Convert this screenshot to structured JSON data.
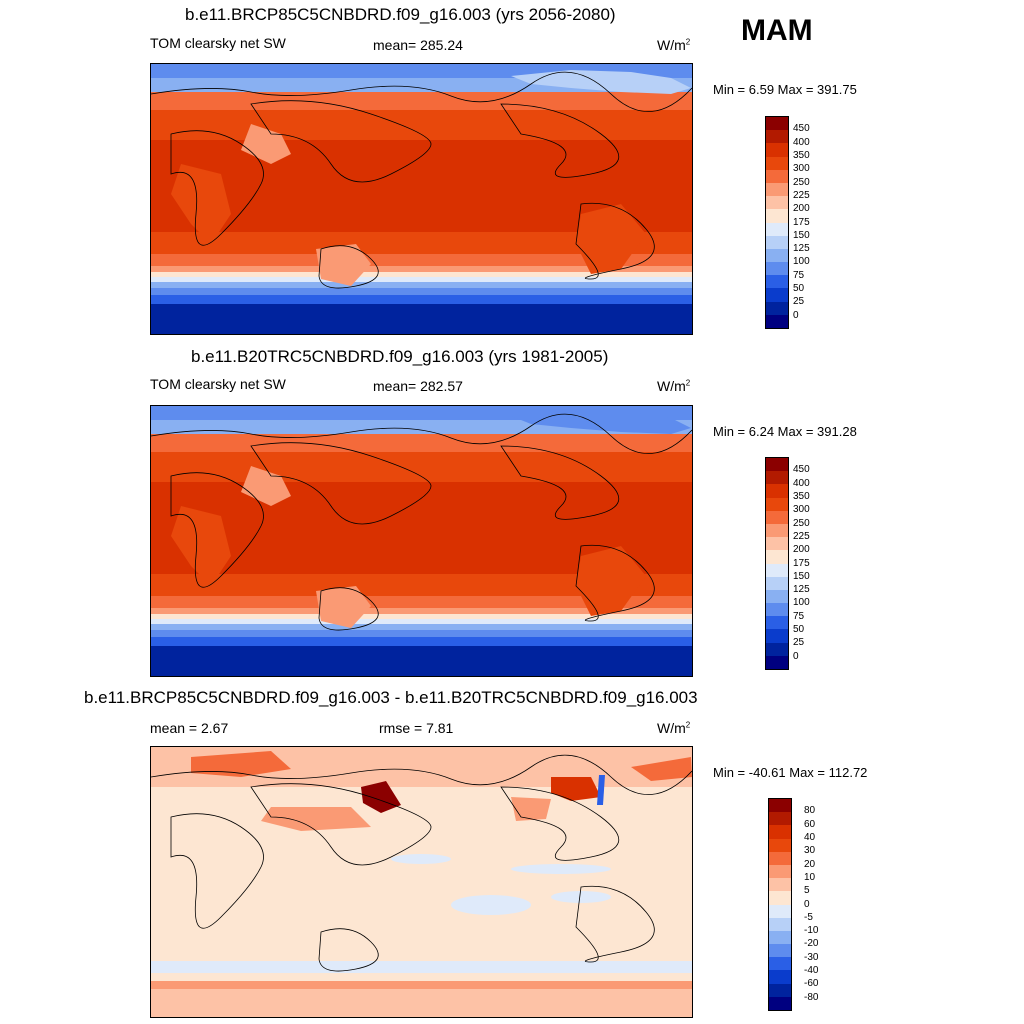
{
  "season": "MAM",
  "panel1": {
    "title": "b.e11.BRCP85C5CNBDRD.f09_g16.003 (yrs 2056-2080)",
    "variable": "TOM clearsky net SW",
    "mean": "mean= 285.24",
    "units": "W/m",
    "units_exp": "2",
    "minmax": "Min =   6.59 Max = 391.75"
  },
  "panel2": {
    "title": "b.e11.B20TRC5CNBDRD.f09_g16.003 (yrs 1981-2005)",
    "variable": "TOM clearsky net SW",
    "mean": "mean= 282.57",
    "units": "W/m",
    "units_exp": "2",
    "minmax": "Min =   6.24 Max = 391.28"
  },
  "panel3": {
    "title": "b.e11.BRCP85C5CNBDRD.f09_g16.003 - b.e11.B20TRC5CNBDRD.f09_g16.003",
    "mean": "mean =   2.67",
    "rmse": "rmse =   7.81",
    "units": "W/m",
    "units_exp": "2",
    "minmax": "Min = -40.61 Max = 112.72"
  },
  "colorbar_abs": {
    "levels": [
      "450",
      "400",
      "350",
      "300",
      "250",
      "225",
      "200",
      "175",
      "150",
      "125",
      "100",
      "75",
      "50",
      "25",
      "0"
    ],
    "colors": [
      "#8b0000",
      "#b21a00",
      "#d93100",
      "#e8480c",
      "#f46a3a",
      "#fa9a74",
      "#fdc2a6",
      "#fde6d2",
      "#dfeafa",
      "#b7d0f7",
      "#89b0f2",
      "#5e8cee",
      "#2a5fe6",
      "#0a3ccc",
      "#00239e",
      "#000080"
    ]
  },
  "colorbar_diff": {
    "levels": [
      "80",
      "60",
      "40",
      "30",
      "20",
      "10",
      "5",
      "0",
      "-5",
      "-10",
      "-20",
      "-30",
      "-40",
      "-60",
      "-80"
    ],
    "colors": [
      "#8b0000",
      "#b21a00",
      "#d93100",
      "#e8480c",
      "#f46a3a",
      "#fa9a74",
      "#fdc2a6",
      "#fde6d2",
      "#dfeafa",
      "#b7d0f7",
      "#89b0f2",
      "#5e8cee",
      "#2a5fe6",
      "#0a3ccc",
      "#00239e",
      "#000080"
    ]
  }
}
